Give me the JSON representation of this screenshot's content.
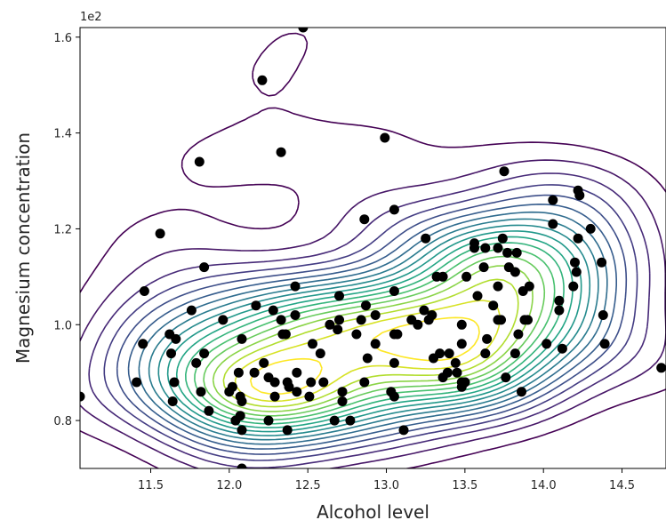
{
  "chart_data": {
    "type": "scatter",
    "xlabel": "Alcohol level",
    "ylabel": "Magnesium concentration",
    "y_offset_label": "1e2",
    "xlim": [
      11.05,
      14.78
    ],
    "ylim": [
      0.7,
      1.62
    ],
    "xticks": [
      11.5,
      12.0,
      12.5,
      13.0,
      13.5,
      14.0,
      14.5
    ],
    "xtick_labels": [
      "11.5",
      "12.0",
      "12.5",
      "13.0",
      "13.5",
      "14.0",
      "14.5"
    ],
    "yticks": [
      0.8,
      1.0,
      1.2,
      1.4,
      1.6
    ],
    "ytick_labels": [
      "0.8",
      "1.0",
      "1.2",
      "1.4",
      "1.6"
    ],
    "grid": false,
    "point_color": "#000000",
    "contour_colormap": "viridis",
    "contour_levels": 18,
    "points": [
      [
        11.05,
        0.85
      ],
      [
        11.41,
        0.88
      ],
      [
        11.45,
        0.96
      ],
      [
        11.46,
        1.07
      ],
      [
        11.56,
        1.19
      ],
      [
        11.62,
        0.98
      ],
      [
        11.63,
        0.94
      ],
      [
        11.64,
        0.84
      ],
      [
        11.65,
        0.88
      ],
      [
        11.66,
        0.97
      ],
      [
        11.76,
        1.03
      ],
      [
        11.79,
        0.92
      ],
      [
        11.81,
        1.34
      ],
      [
        11.82,
        0.86
      ],
      [
        11.84,
        1.12
      ],
      [
        11.84,
        0.94
      ],
      [
        11.87,
        0.82
      ],
      [
        11.96,
        1.01
      ],
      [
        12.0,
        0.86
      ],
      [
        12.02,
        0.87
      ],
      [
        12.04,
        0.8
      ],
      [
        12.06,
        0.9
      ],
      [
        12.07,
        0.85
      ],
      [
        12.07,
        0.81
      ],
      [
        12.08,
        0.78
      ],
      [
        12.08,
        0.97
      ],
      [
        12.08,
        0.84
      ],
      [
        12.08,
        0.7
      ],
      [
        12.16,
        0.9
      ],
      [
        12.17,
        1.04
      ],
      [
        12.21,
        1.51
      ],
      [
        12.22,
        0.92
      ],
      [
        12.25,
        0.89
      ],
      [
        12.25,
        0.8
      ],
      [
        12.28,
        1.03
      ],
      [
        12.29,
        0.85
      ],
      [
        12.29,
        0.88
      ],
      [
        12.33,
        1.01
      ],
      [
        12.33,
        1.36
      ],
      [
        12.34,
        0.98
      ],
      [
        12.36,
        0.98
      ],
      [
        12.37,
        0.88
      ],
      [
        12.37,
        0.78
      ],
      [
        12.38,
        0.87
      ],
      [
        12.42,
        1.02
      ],
      [
        12.42,
        1.08
      ],
      [
        12.43,
        0.86
      ],
      [
        12.43,
        0.9
      ],
      [
        12.47,
        1.62
      ],
      [
        12.51,
        0.85
      ],
      [
        12.52,
        0.88
      ],
      [
        12.53,
        0.96
      ],
      [
        12.58,
        0.94
      ],
      [
        12.6,
        0.88
      ],
      [
        12.64,
        1.0
      ],
      [
        12.67,
        0.8
      ],
      [
        12.69,
        0.99
      ],
      [
        12.7,
        1.06
      ],
      [
        12.7,
        1.01
      ],
      [
        12.72,
        0.84
      ],
      [
        12.72,
        0.86
      ],
      [
        12.77,
        0.8
      ],
      [
        12.81,
        0.98
      ],
      [
        12.84,
        1.01
      ],
      [
        12.86,
        0.88
      ],
      [
        12.86,
        1.22
      ],
      [
        12.87,
        1.04
      ],
      [
        12.88,
        0.93
      ],
      [
        12.93,
        0.96
      ],
      [
        12.93,
        1.02
      ],
      [
        12.99,
        1.39
      ],
      [
        13.03,
        0.86
      ],
      [
        13.05,
        0.85
      ],
      [
        13.05,
        0.98
      ],
      [
        13.05,
        1.24
      ],
      [
        13.05,
        1.07
      ],
      [
        13.05,
        0.92
      ],
      [
        13.07,
        0.98
      ],
      [
        13.11,
        0.78
      ],
      [
        13.16,
        1.01
      ],
      [
        13.2,
        1.0
      ],
      [
        13.24,
        1.03
      ],
      [
        13.25,
        1.18
      ],
      [
        13.27,
        1.01
      ],
      [
        13.29,
        1.02
      ],
      [
        13.3,
        0.93
      ],
      [
        13.32,
        1.1
      ],
      [
        13.34,
        0.94
      ],
      [
        13.36,
        0.89
      ],
      [
        13.36,
        1.1
      ],
      [
        13.39,
        0.9
      ],
      [
        13.4,
        0.94
      ],
      [
        13.44,
        0.92
      ],
      [
        13.45,
        0.9
      ],
      [
        13.48,
        0.87
      ],
      [
        13.48,
        0.88
      ],
      [
        13.48,
        1.0
      ],
      [
        13.48,
        0.96
      ],
      [
        13.5,
        0.88
      ],
      [
        13.5,
        0.88
      ],
      [
        13.51,
        1.1
      ],
      [
        13.56,
        1.16
      ],
      [
        13.56,
        1.17
      ],
      [
        13.58,
        1.06
      ],
      [
        13.62,
        1.12
      ],
      [
        13.63,
        1.16
      ],
      [
        13.63,
        0.94
      ],
      [
        13.64,
        0.97
      ],
      [
        13.68,
        1.04
      ],
      [
        13.71,
        1.16
      ],
      [
        13.71,
        1.08
      ],
      [
        13.71,
        1.01
      ],
      [
        13.73,
        1.01
      ],
      [
        13.74,
        1.18
      ],
      [
        13.75,
        1.32
      ],
      [
        13.76,
        0.89
      ],
      [
        13.77,
        1.15
      ],
      [
        13.78,
        1.12
      ],
      [
        13.82,
        0.94
      ],
      [
        13.82,
        1.11
      ],
      [
        13.83,
        1.15
      ],
      [
        13.84,
        0.98
      ],
      [
        13.86,
        0.86
      ],
      [
        13.87,
        1.07
      ],
      [
        13.88,
        1.01
      ],
      [
        13.9,
        1.01
      ],
      [
        13.91,
        1.08
      ],
      [
        14.02,
        0.96
      ],
      [
        14.06,
        1.26
      ],
      [
        14.06,
        1.21
      ],
      [
        14.1,
        1.05
      ],
      [
        14.1,
        1.03
      ],
      [
        14.12,
        0.95
      ],
      [
        14.19,
        1.08
      ],
      [
        14.2,
        1.13
      ],
      [
        14.21,
        1.11
      ],
      [
        14.22,
        1.18
      ],
      [
        14.22,
        1.28
      ],
      [
        14.23,
        1.27
      ],
      [
        14.3,
        1.2
      ],
      [
        14.37,
        1.13
      ],
      [
        14.38,
        1.02
      ],
      [
        14.39,
        0.96
      ],
      [
        14.75,
        0.91
      ]
    ]
  }
}
